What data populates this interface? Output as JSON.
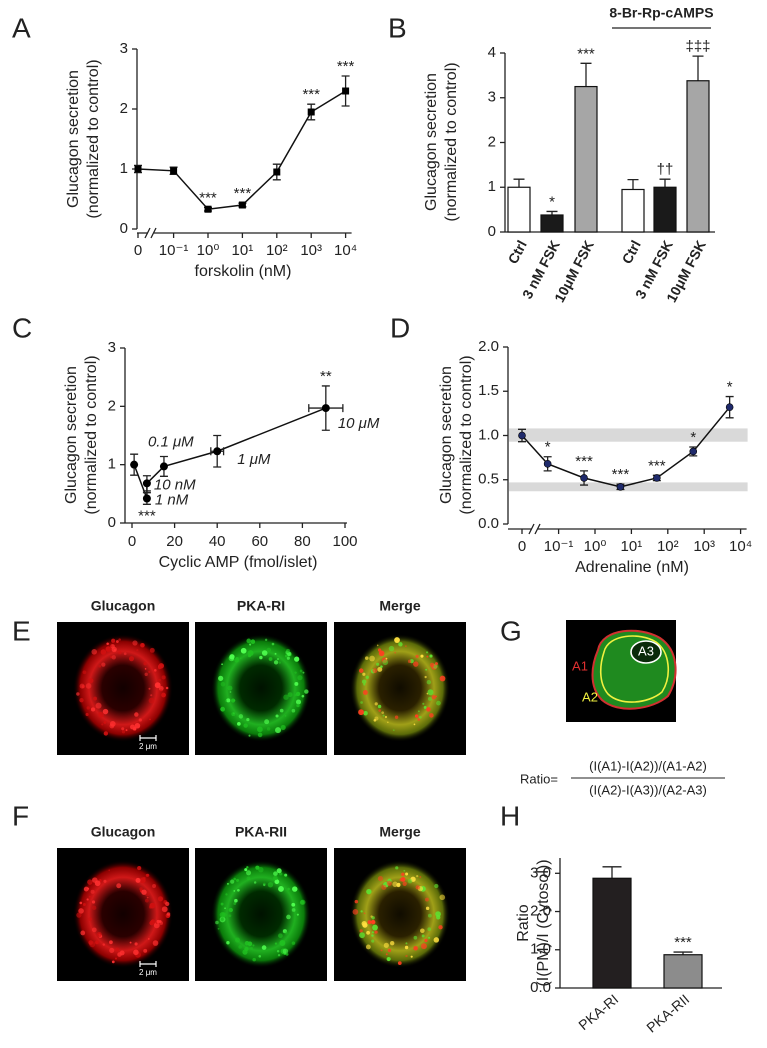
{
  "chart_data": [
    {
      "panel": "A",
      "type": "line",
      "y_label": [
        "Glucagon secretion",
        "(normalized to control)"
      ],
      "x_label": "forskolin (nM)",
      "x": [
        0,
        0.1,
        1,
        10,
        100,
        1000,
        10000
      ],
      "values": [
        1.0,
        0.97,
        0.33,
        0.4,
        0.95,
        1.95,
        2.3
      ],
      "errors": [
        0.06,
        0.06,
        0.03,
        0.03,
        0.13,
        0.13,
        0.25
      ],
      "significance": [
        null,
        null,
        "***",
        "***",
        null,
        "***",
        "***"
      ],
      "marker": "square",
      "color": "#000000",
      "xscale": "log",
      "x_break": true,
      "xlim": [
        0,
        10000
      ],
      "xticks": [
        0,
        {
          "value": 0.1,
          "label": "10⁻¹"
        },
        {
          "value": 1,
          "label": "10⁰"
        },
        {
          "value": 10,
          "label": "10¹"
        },
        {
          "value": 100,
          "label": "10²"
        },
        {
          "value": 1000,
          "label": "10³"
        },
        {
          "value": 10000,
          "label": "10⁴"
        }
      ],
      "ylim": [
        0,
        3
      ],
      "yticks": [
        0,
        1,
        2,
        3
      ]
    },
    {
      "panel": "B",
      "type": "bar",
      "y_label": [
        "Glucagon secretion",
        "(normalized to control)"
      ],
      "group_label": "8-Br-Rp-cAMPS",
      "categories": [
        "Ctrl",
        "3 nM FSK",
        "10μM FSK",
        "Ctrl",
        "3 nM FSK",
        "10μM FSK"
      ],
      "values": [
        1.0,
        0.38,
        3.25,
        0.95,
        1.0,
        3.38
      ],
      "errors": [
        0.18,
        0.08,
        0.52,
        0.22,
        0.18,
        0.55
      ],
      "colors": [
        "#ffffff",
        "#1a1a1a",
        "#a6a6a6",
        "#ffffff",
        "#1a1a1a",
        "#a6a6a6"
      ],
      "significance": [
        null,
        "*",
        "***",
        null,
        "††",
        "‡‡‡"
      ],
      "ylim": [
        0,
        4
      ],
      "yticks": [
        0,
        1,
        2,
        3,
        4
      ]
    },
    {
      "panel": "C",
      "type": "scatter",
      "y_label": [
        "Glucagon secretion",
        "(normalized to control)"
      ],
      "x_label": "Cyclic AMP (fmol/islet)",
      "x": [
        1,
        7,
        7,
        15,
        40,
        91
      ],
      "x_errors": [
        null,
        null,
        null,
        null,
        3,
        8
      ],
      "values": [
        1.0,
        0.42,
        0.68,
        0.97,
        1.23,
        1.97
      ],
      "errors": [
        0.18,
        0.1,
        0.13,
        0.17,
        0.27,
        0.38
      ],
      "point_labels": [
        null,
        "1 nM",
        "10 nM",
        "0.1 μM",
        "1 μM",
        "10 μM"
      ],
      "significance": [
        null,
        "***",
        null,
        null,
        null,
        "**"
      ],
      "color": "#000000",
      "xlim": [
        0,
        100
      ],
      "xticks": [
        0,
        20,
        40,
        60,
        80,
        100
      ],
      "ylim": [
        0,
        3
      ],
      "yticks": [
        0,
        1,
        2,
        3
      ]
    },
    {
      "panel": "D",
      "type": "line",
      "y_label": [
        "Glucagon secretion",
        "(normalized to control)"
      ],
      "x_label": "Adrenaline (nM)",
      "x": [
        0,
        0.05,
        0.5,
        5,
        50,
        500,
        5000
      ],
      "values": [
        1.0,
        0.68,
        0.52,
        0.42,
        0.52,
        0.82,
        1.32
      ],
      "errors": [
        0.07,
        0.08,
        0.08,
        0.03,
        0.03,
        0.05,
        0.12
      ],
      "significance": [
        null,
        "*",
        "***",
        "***",
        "***",
        "*",
        "*"
      ],
      "marker": "circle",
      "color": "#1f2a6b",
      "bands": [
        [
          0.93,
          1.08
        ],
        [
          0.37,
          0.47
        ]
      ],
      "band_color": "#d9d9d9",
      "xscale": "log",
      "x_break": true,
      "xlim": [
        0,
        10000
      ],
      "xticks": [
        0,
        {
          "value": 0.1,
          "label": "10⁻¹"
        },
        {
          "value": 1,
          "label": "10⁰"
        },
        {
          "value": 10,
          "label": "10¹"
        },
        {
          "value": 100,
          "label": "10²"
        },
        {
          "value": 1000,
          "label": "10³"
        },
        {
          "value": 10000,
          "label": "10⁴"
        }
      ],
      "ylim": [
        0,
        2
      ],
      "yticks": [
        {
          "value": 0,
          "label": "0.0"
        },
        0.5,
        {
          "value": 1,
          "label": "1.0"
        },
        1.5,
        {
          "value": 2,
          "label": "2.0"
        }
      ]
    },
    {
      "panel": "H",
      "type": "bar",
      "y_label": [
        "Ratio",
        "(I(PM)/I (Cytosol))"
      ],
      "categories": [
        "PKA-RI",
        "PKA-RII"
      ],
      "values": [
        2.87,
        0.87
      ],
      "errors": [
        0.3,
        0.07
      ],
      "colors": [
        "#231f20",
        "#8c8c8c"
      ],
      "significance": [
        null,
        "***"
      ],
      "ylim": [
        0,
        3.4
      ],
      "yticks": [
        {
          "value": 0,
          "label": "0.0"
        },
        {
          "value": 1,
          "label": "1.0"
        },
        {
          "value": 2,
          "label": "2.0"
        },
        {
          "value": 3,
          "label": "3.0"
        }
      ]
    }
  ],
  "image_panels": [
    {
      "panel": "E",
      "labels": [
        "Glucagon",
        "PKA-RI",
        "Merge"
      ],
      "scale_bar": "2 μm"
    },
    {
      "panel": "F",
      "labels": [
        "Glucagon",
        "PKA-RII",
        "Merge"
      ],
      "scale_bar": "2 μm"
    }
  ],
  "roi_panel": {
    "panel": "G",
    "regions": [
      "A1",
      "A2",
      "A3"
    ],
    "formula": {
      "prefix": "Ratio=",
      "numerator": "(I(A1)-I(A2))/(A1-A2)",
      "denominator": "(I(A2)-I(A3))/(A2-A3)"
    }
  }
}
